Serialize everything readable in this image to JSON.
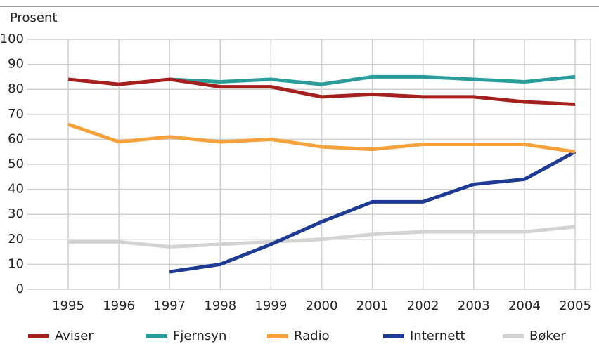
{
  "chart_data": {
    "type": "line",
    "y_label": "Prosent",
    "categories": [
      "1995",
      "1996",
      "1997",
      "1998",
      "1999",
      "2000",
      "2001",
      "2002",
      "2003",
      "2004",
      "2005"
    ],
    "series": [
      {
        "name": "Aviser",
        "color": "#a3201f",
        "values": [
          84,
          82,
          84,
          81,
          81,
          77,
          78,
          77,
          77,
          75,
          74
        ]
      },
      {
        "name": "Fjernsyn",
        "color": "#2b9b9b",
        "values": [
          null,
          null,
          84,
          83,
          84,
          82,
          85,
          85,
          84,
          83,
          85
        ]
      },
      {
        "name": "Radio",
        "color": "#f7a13c",
        "values": [
          66,
          59,
          61,
          59,
          60,
          57,
          56,
          58,
          58,
          58,
          55
        ]
      },
      {
        "name": "Internett",
        "color": "#1f3a93",
        "values": [
          null,
          null,
          7,
          10,
          18,
          27,
          35,
          35,
          42,
          44,
          55
        ]
      },
      {
        "name": "Bøker",
        "color": "#d3d3d3",
        "values": [
          19,
          19,
          17,
          18,
          19,
          20,
          22,
          23,
          23,
          23,
          25
        ]
      }
    ],
    "ylim": [
      0,
      100
    ],
    "yticks": [
      0,
      10,
      20,
      30,
      40,
      50,
      60,
      70,
      80,
      90,
      100
    ],
    "grid": true,
    "legend": "bottom"
  }
}
